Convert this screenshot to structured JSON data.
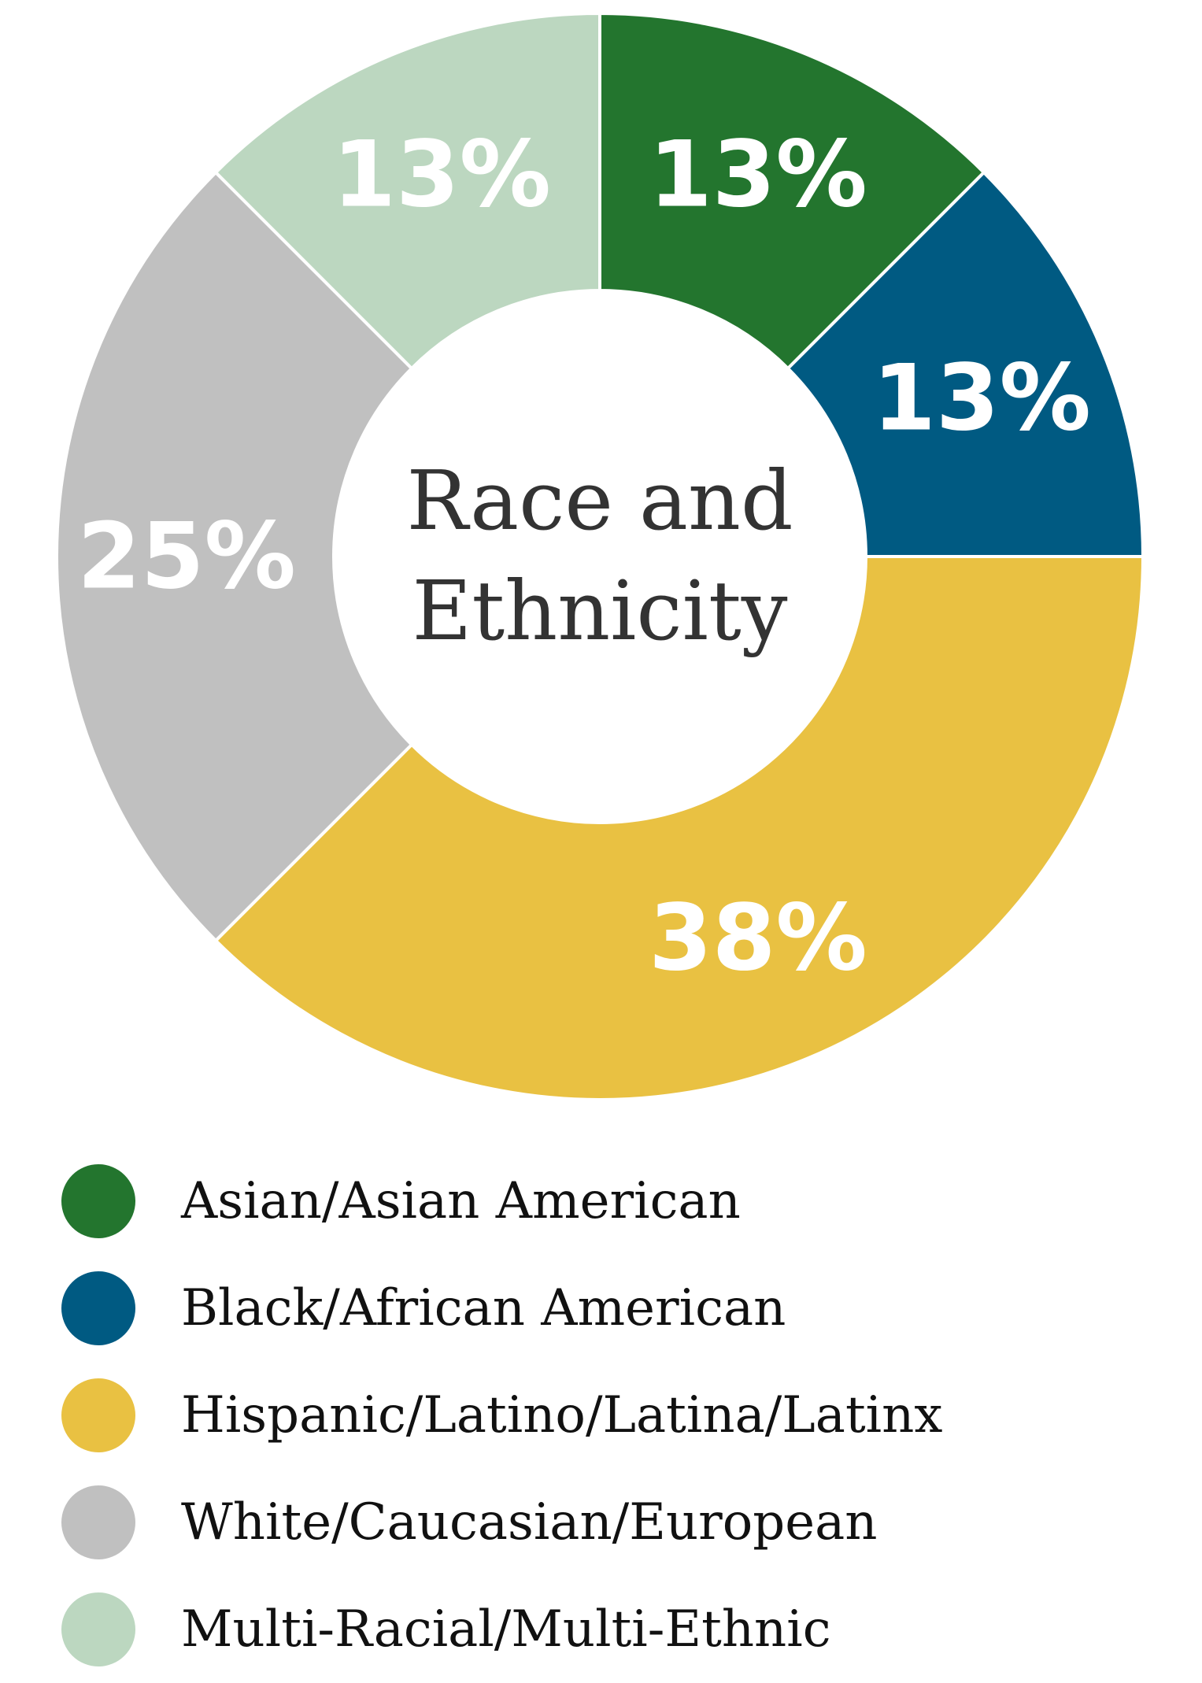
{
  "chart_data": {
    "type": "pie",
    "title": "Race and Ethnicity",
    "categories": [
      "Asian/Asian American",
      "Black/African American",
      "Hispanic/Latino/Latina/Latinx",
      "White/Caucasian/European",
      "Multi-Racial/Multi-Ethnic"
    ],
    "values": [
      12.5,
      12.5,
      37.5,
      25,
      12.5
    ],
    "labels": [
      "13%",
      "13%",
      "38%",
      "25%",
      "13%"
    ],
    "colors": [
      "#23752e",
      "#005a82",
      "#e9c142",
      "#c0c0c0",
      "#bcd7c0"
    ],
    "legend_position": "bottom",
    "donut": true
  }
}
